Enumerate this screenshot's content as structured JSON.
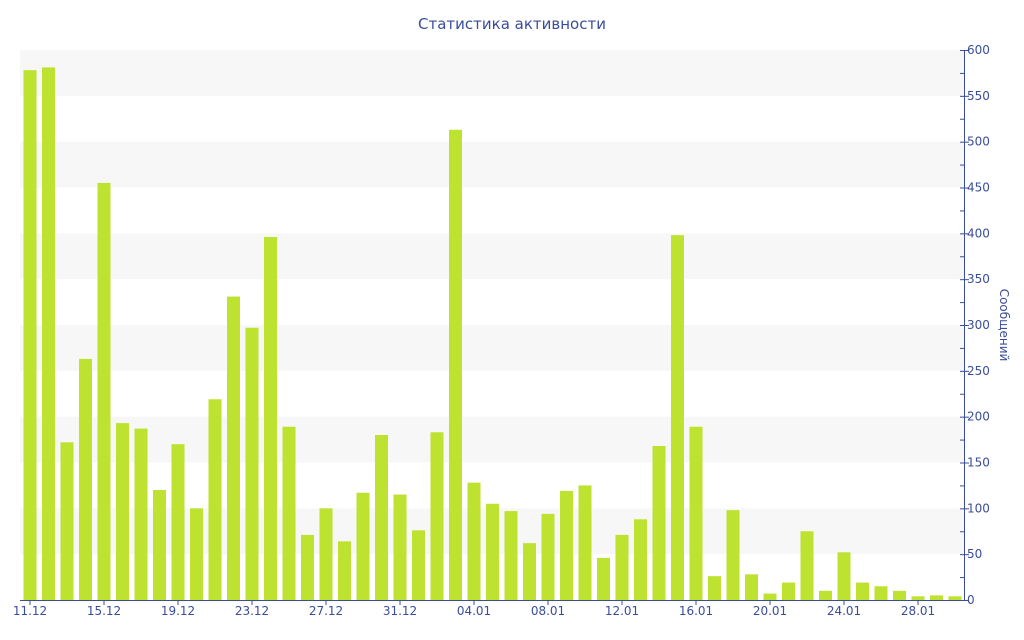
{
  "chart_data": {
    "type": "bar",
    "title": "Статистика активности",
    "xlabel": "",
    "ylabel": "Сообщений",
    "ylim": [
      0,
      600
    ],
    "y_ticks": [
      0,
      50,
      100,
      150,
      200,
      250,
      300,
      350,
      400,
      450,
      500,
      550,
      600
    ],
    "y_axis_position": "right",
    "grid": "alternating horizontal bands",
    "x_tick_labels": [
      "11.12",
      "15.12",
      "19.12",
      "23.12",
      "27.12",
      "31.12",
      "04.01",
      "08.01",
      "12.01",
      "16.01",
      "20.01",
      "24.01",
      "28.01"
    ],
    "categories": [
      "11.12",
      "12.12",
      "13.12",
      "14.12",
      "15.12",
      "16.12",
      "17.12",
      "18.12",
      "19.12",
      "20.12",
      "21.12",
      "22.12",
      "23.12",
      "24.12",
      "25.12",
      "26.12",
      "27.12",
      "28.12",
      "29.12",
      "30.12",
      "31.12",
      "01.01",
      "02.01",
      "03.01",
      "04.01",
      "05.01",
      "06.01",
      "07.01",
      "08.01",
      "09.01",
      "10.01",
      "11.01",
      "12.01",
      "13.01",
      "14.01",
      "15.01",
      "16.01",
      "17.01",
      "18.01",
      "19.01",
      "20.01",
      "21.01",
      "22.01",
      "23.01",
      "24.01",
      "25.01",
      "26.01",
      "27.01",
      "28.01",
      "29.01",
      "30.01"
    ],
    "values": [
      578,
      581,
      172,
      263,
      455,
      193,
      187,
      120,
      170,
      100,
      219,
      331,
      297,
      396,
      189,
      71,
      100,
      64,
      117,
      180,
      115,
      76,
      183,
      513,
      128,
      105,
      97,
      62,
      94,
      119,
      125,
      46,
      71,
      88,
      168,
      398,
      189,
      26,
      98,
      28,
      7,
      19,
      75,
      10,
      52,
      19,
      15,
      10,
      4,
      5,
      4
    ],
    "colors": {
      "bar": "#bde22f",
      "axis": "#3a4d9c",
      "band": "#f7f7f7"
    }
  }
}
